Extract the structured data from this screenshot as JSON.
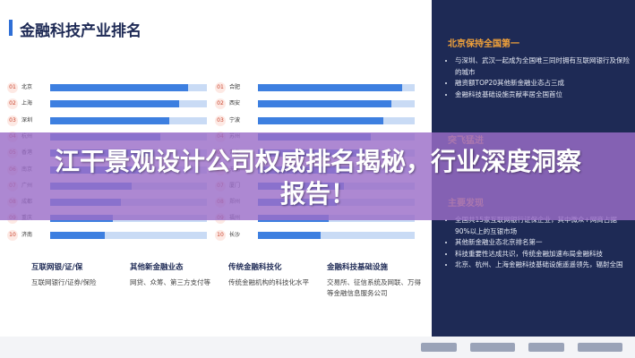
{
  "slide": {
    "title": "金融科技产业排名",
    "ranking_max": 100,
    "rankings": [
      {
        "items": [
          {
            "rank": "01",
            "city": "北京",
            "value": 88
          },
          {
            "rank": "02",
            "city": "上海",
            "value": 82
          },
          {
            "rank": "03",
            "city": "深圳",
            "value": 76
          },
          {
            "rank": "04",
            "city": "杭州",
            "value": 70
          },
          {
            "rank": "05",
            "city": "香港",
            "value": 66
          },
          {
            "rank": "06",
            "city": "南京",
            "value": 58
          },
          {
            "rank": "07",
            "city": "广州",
            "value": 52
          },
          {
            "rank": "08",
            "city": "成都",
            "value": 45
          },
          {
            "rank": "09",
            "city": "重庆",
            "value": 40
          },
          {
            "rank": "10",
            "city": "济南",
            "value": 35
          }
        ]
      },
      {
        "items": [
          {
            "rank": "01",
            "city": "合肥",
            "value": 92
          },
          {
            "rank": "02",
            "city": "西安",
            "value": 85
          },
          {
            "rank": "03",
            "city": "宁波",
            "value": 80
          },
          {
            "rank": "04",
            "city": "苏州",
            "value": 72
          },
          {
            "rank": "05",
            "city": "青岛",
            "value": 68
          },
          {
            "rank": "06",
            "city": "无锡",
            "value": 60
          },
          {
            "rank": "07",
            "city": "厦门",
            "value": 55
          },
          {
            "rank": "08",
            "city": "郑州",
            "value": 50
          },
          {
            "rank": "09",
            "city": "福州",
            "value": 45
          },
          {
            "rank": "10",
            "city": "长沙",
            "value": 40
          }
        ]
      }
    ],
    "sections": [
      {
        "heading": "互联网银/证/保",
        "text": "互联网银行/证券/保险"
      },
      {
        "heading": "其他新金融业态",
        "text": "网贷、众筹、第三方支付等"
      },
      {
        "heading": "传统金融科技化",
        "text": "传统金融机构的科技化水平"
      },
      {
        "heading": "金融科技基础设施",
        "text": "交易所、征信系统及网联、万得等金融信息服务公司"
      }
    ]
  },
  "sidebar": {
    "blocks": [
      {
        "heading": "北京保持全国第一",
        "bullets": [
          "与深圳、武汉一起成为全国唯三同时拥有互联网银行及保险的城市",
          "融资额TOP20其他新金融业态占三成",
          "金融科技基础设施贡献率居全国首位"
        ]
      },
      {
        "heading": "突飞猛进",
        "bullets": []
      },
      {
        "heading": "主要发现",
        "bullets": [
          "全国共15家互联网银行证保企业，其中微众+网商占据90%以上的互银市场",
          "其他新金融业态北京排名第一",
          "科技重要性达成共识，传统金融加速布局金融科技",
          "北京、杭州、上海金融科技基础设施遥遥领先，辐射全国"
        ]
      }
    ]
  },
  "banner": {
    "title": "江干景观设计公司权威排名揭秘，行业深度洞察报告！"
  }
}
